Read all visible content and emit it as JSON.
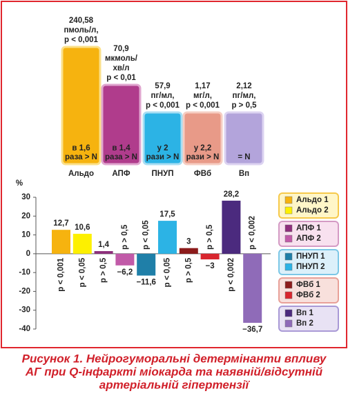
{
  "chart_data": [
    {
      "type": "schematic-bar",
      "categories": [
        "Альдо",
        "АПФ",
        "ПНУП",
        "ФВб",
        "Вп"
      ],
      "annotations": [
        [
          "240,58",
          "пмоль/л,",
          "p < 0,001"
        ],
        [
          "70,9",
          "мкмоль/",
          "хв/л",
          "p < 0,01"
        ],
        [
          "57,9",
          "пг/мл,",
          "p < 0,001"
        ],
        [
          "1,17",
          "мг/л,",
          "p < 0,001"
        ],
        [
          "2,12",
          "пг/мл,",
          "p > 0,5"
        ]
      ],
      "inner_labels": [
        [
          "в 1,6",
          "раза > N"
        ],
        [
          "в 1,4",
          "раза > N"
        ],
        [
          "у 2",
          "рази > N"
        ],
        [
          "у 2,2",
          "рази > N"
        ],
        [
          "= N"
        ]
      ],
      "colors": [
        "#f6b30f",
        "#b03c8c",
        "#2cb3e5",
        "#e89a88",
        "#b3a4db"
      ],
      "borders": [
        "#fbe08a",
        "#e0a6cf",
        "#a9def3",
        "#f6cdc2",
        "#dcd3f1"
      ]
    },
    {
      "type": "bar",
      "ylabel": "%",
      "ylim": [
        -40,
        30
      ],
      "yticks": [
        30,
        20,
        10,
        0,
        -10,
        -20,
        -30,
        -40
      ],
      "series": [
        {
          "name": "Альдо 1",
          "color": "#f6b30f",
          "values": [
            12.7
          ],
          "value_labels": [
            "12,7"
          ],
          "p_labels": [
            "p < 0,001"
          ]
        },
        {
          "name": "Альдо 2",
          "color": "#fdf000",
          "values": [
            10.6
          ],
          "value_labels": [
            "10,6"
          ],
          "p_labels": [
            "p < 0,05"
          ]
        },
        {
          "name": "АПФ 1",
          "color": "#8e2f7c",
          "values": [
            1.4
          ],
          "value_labels": [
            "1,4"
          ],
          "p_labels": [
            "p > 0,5"
          ]
        },
        {
          "name": "АПФ 2",
          "color": "#c15aa8",
          "values": [
            -6.2
          ],
          "value_labels": [
            "−6,2"
          ],
          "p_labels": [
            "p > 0,5"
          ]
        },
        {
          "name": "ПНУП 1",
          "color": "#1f7fa8",
          "values": [
            -11.6
          ],
          "value_labels": [
            "−11,6"
          ],
          "p_labels": [
            "p < 0,05"
          ]
        },
        {
          "name": "ПНУП 2",
          "color": "#2cb3e5",
          "values": [
            17.5
          ],
          "value_labels": [
            "17,5"
          ],
          "p_labels": [
            "p < 0,05"
          ]
        },
        {
          "name": "ФВб 1",
          "color": "#8c1b1b",
          "values": [
            3
          ],
          "value_labels": [
            "3"
          ],
          "p_labels": [
            "p > 0,5"
          ]
        },
        {
          "name": "ФВб 2",
          "color": "#d8262e",
          "values": [
            -3
          ],
          "value_labels": [
            "−3"
          ],
          "p_labels": [
            "p > 0,5"
          ]
        },
        {
          "name": "Вп 1",
          "color": "#4b2a7e",
          "values": [
            28.2
          ],
          "value_labels": [
            "28,2"
          ],
          "p_labels": [
            "p < 0,002"
          ]
        },
        {
          "name": "Вп 2",
          "color": "#8f6bb8",
          "values": [
            -36.7
          ],
          "value_labels": [
            "−36,7"
          ],
          "p_labels": [
            "p < 0,002"
          ]
        }
      ]
    }
  ],
  "caption": [
    "Рисунок 1. Нейрогуморальні детермінанти впливу",
    "АГ при Q-інфаркті міокарда та наявній/відсутній",
    "артеріальній гіпертензії"
  ]
}
